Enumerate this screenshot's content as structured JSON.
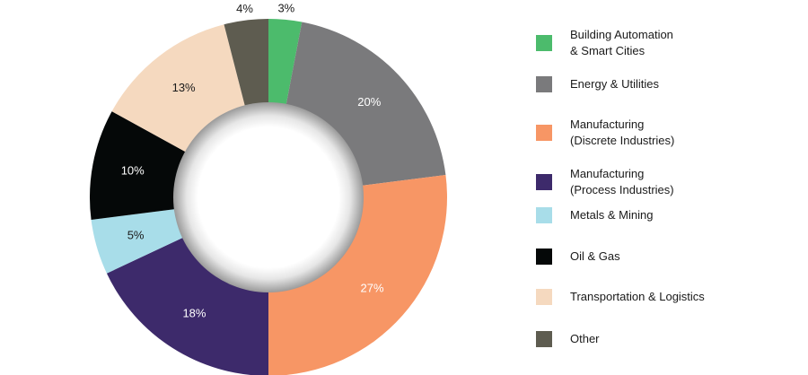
{
  "chart_data": {
    "type": "pie",
    "categories": [
      "Building Automation\n& Smart Cities",
      "Energy & Utilities",
      "Manufacturing\n(Discrete Industries)",
      "Manufacturing\n(Process Industries)",
      "Metals & Mining",
      "Oil & Gas",
      "Transportation & Logistics",
      "Other"
    ],
    "values": [
      3,
      20,
      27,
      18,
      5,
      10,
      13,
      4
    ],
    "value_labels": [
      "3%",
      "20%",
      "27%",
      "18%",
      "5%",
      "10%",
      "13%",
      "4%"
    ],
    "colors": [
      "#4cbb6c",
      "#7a7a7c",
      "#f79665",
      "#3d2a6b",
      "#a8dde9",
      "#050808",
      "#f5d9bf",
      "#5e5c50"
    ],
    "label_colors": [
      "#1a1a1a",
      "#ffffff",
      "#ffffff",
      "#ffffff",
      "#1a1a1a",
      "#ffffff",
      "#1a1a1a",
      "#1a1a1a"
    ],
    "chart_style": "donut",
    "start_angle": "top",
    "direction": "clockwise",
    "legend_position": "right"
  }
}
